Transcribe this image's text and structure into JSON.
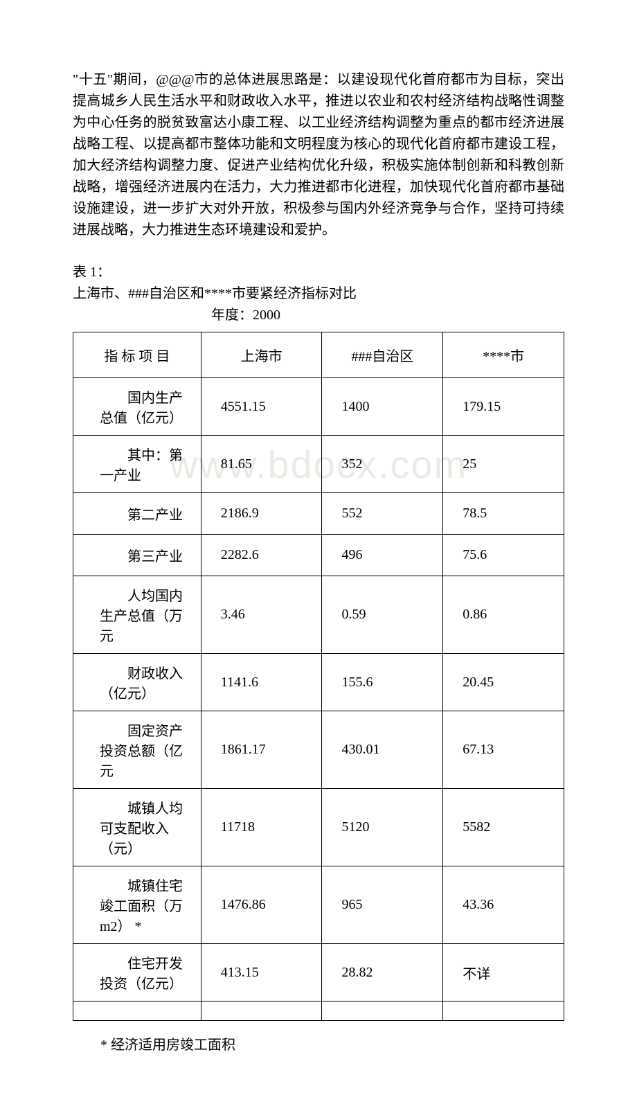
{
  "paragraph": " \"十五\"期间，@@@市的总体进展思路是：以建设现代化首府都市为目标，突出提高城乡人民生活水平和财政收入水平，推进以农业和农村经济结构战略性调整为中心任务的脱贫致富达小康工程、以工业经济结构调整为重点的都市经济进展战略工程、以提高都市整体功能和文明程度为核心的现代化首府都市建设工程，加大经济结构调整力度、促进产业结构优化升级，积极实施体制创新和科教创新战略，增强经济进展内在活力，大力推进都市化进程，加快现代化首府都市基础设施建设，进一步扩大对外开放，积极参与国内外经济竞争与合作，坚持可持续进展战略，大力推进生态环境建设和爱护。",
  "tableNumber": " 表 1：",
  "tableTitle": " 上海市、###自治区和****市要紧经济指标对比",
  "yearLabel": "年度：2000",
  "watermark": "www.bdocx.com",
  "footnote": "* 经济适用房竣工面积",
  "table": {
    "headers": [
      "指 标 项 目",
      "上海市",
      "###自治区",
      "****市"
    ],
    "rows": [
      {
        "label": "　　国内生产总值（亿元）",
        "c1": "4551.15",
        "c2": "1400",
        "c3": "179.15"
      },
      {
        "label": "　　其中：第一产业",
        "c1": "81.65",
        "c2": "352",
        "c3": "25"
      },
      {
        "label": "　　第二产业",
        "c1": "2186.9",
        "c2": "552",
        "c3": "78.5"
      },
      {
        "label": "　　第三产业",
        "c1": "2282.6",
        "c2": "496",
        "c3": "75.6"
      },
      {
        "label": "　　人均国内生产总值（万元",
        "c1": "3.46",
        "c2": "0.59",
        "c3": "0.86"
      },
      {
        "label": "　　财政收入（亿元）",
        "c1": "1141.6",
        "c2": "155.6",
        "c3": "20.45"
      },
      {
        "label": "　　固定资产投资总额（亿元",
        "c1": "1861.17",
        "c2": "430.01",
        "c3": "67.13"
      },
      {
        "label": "　　城镇人均可支配收入（元）",
        "c1": "11718",
        "c2": "5120",
        "c3": "5582"
      },
      {
        "label": "　　城镇住宅竣工面积（万 m2）  *",
        "c1": "1476.86",
        "c2": "965",
        "c3": "43.36"
      },
      {
        "label": "　　住宅开发投资（亿元）",
        "c1": "413.15",
        "c2": "28.82",
        "c3": "不详"
      }
    ]
  },
  "colors": {
    "text": "#000000",
    "border": "#000000",
    "background": "#ffffff",
    "watermark": "#eceae4"
  },
  "typography": {
    "body_font": "SimSun",
    "body_size_pt": 15,
    "watermark_size_pt": 42
  }
}
